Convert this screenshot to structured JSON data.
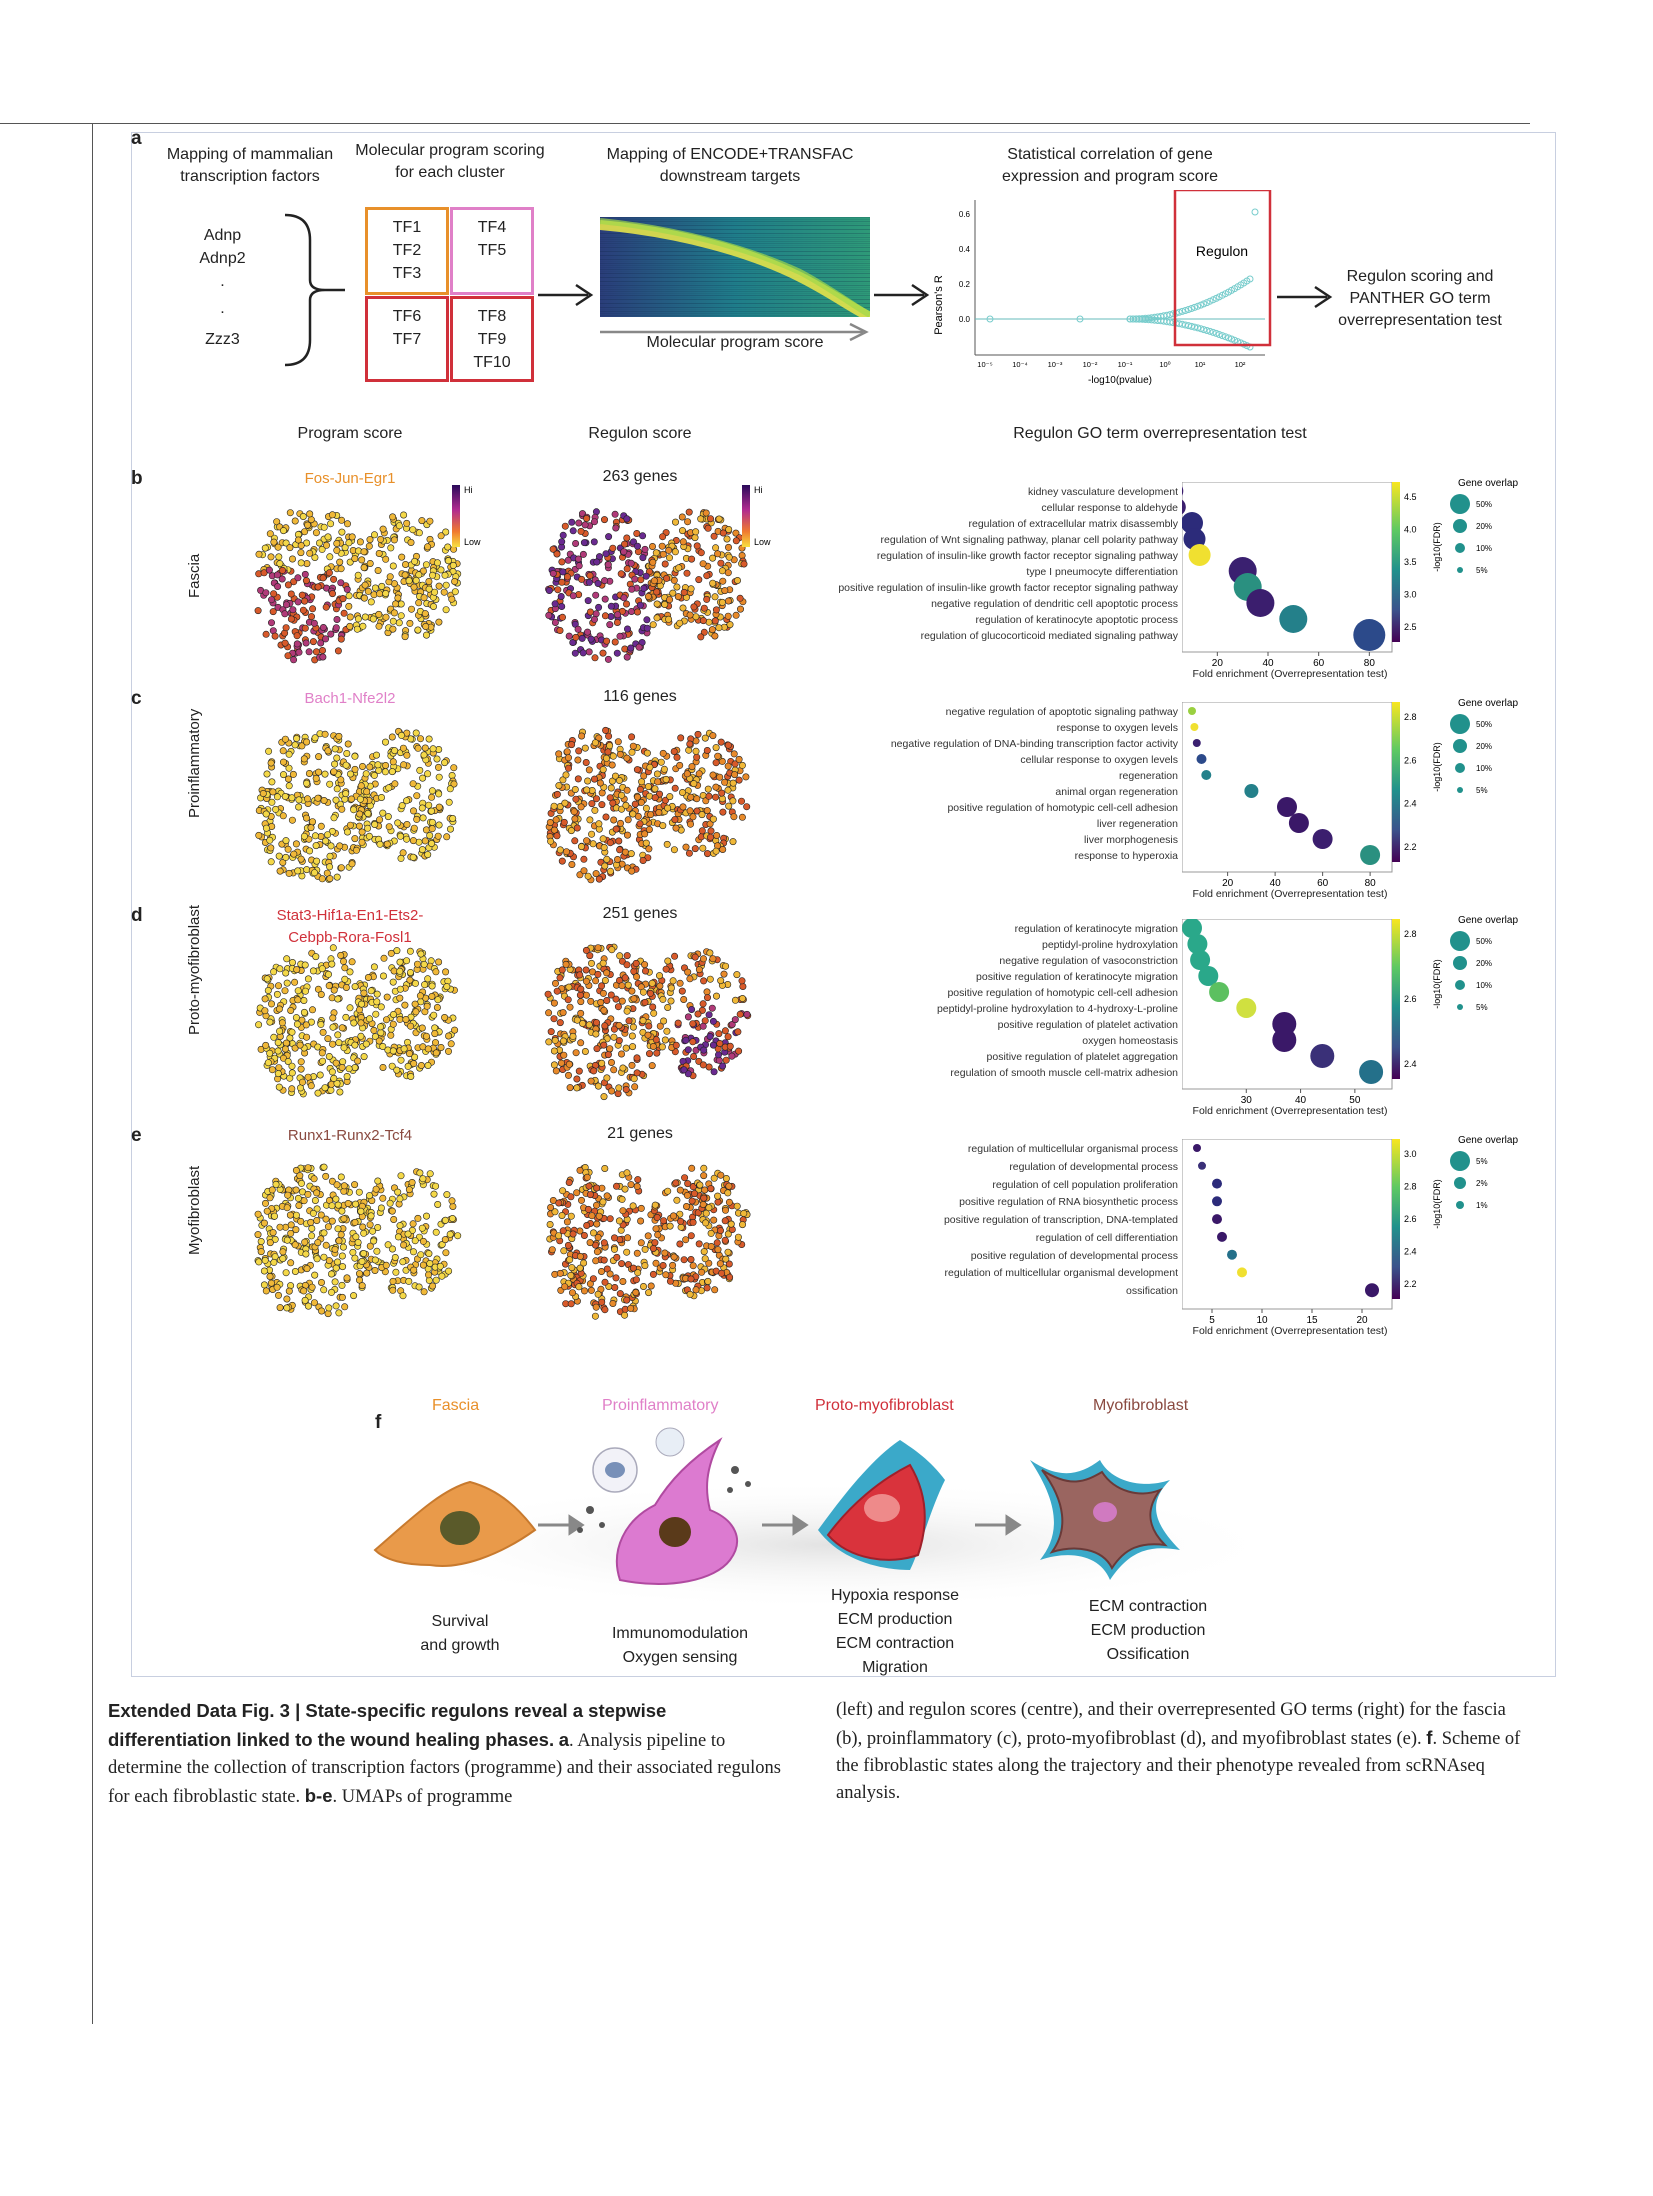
{
  "panel_a": {
    "letter": "a",
    "col1": "Mapping of mammalian transcription factors",
    "col2": "Molecular program scoring for each cluster",
    "col3": "Mapping of ENCODE+TRANSFAC downstream targets",
    "col4": "Statistical correlation of gene expression and program score",
    "col5": "Regulon scoring and PANTHER GO term overrepresentation test",
    "tf_list": [
      "Adnp",
      "Adnp2",
      ".",
      ".",
      "Zzz3"
    ],
    "boxes": [
      "TF1 TF2 TF3",
      "TF4 TF5",
      "TF6 TF7",
      "TF8 TF9 TF10"
    ],
    "box_colors": [
      "#e8902a",
      "#e080c8",
      "#d0303a",
      "#d0303a"
    ],
    "heatmap_caption": "Molecular program score",
    "scatter_ylabel": "Pearson's R",
    "scatter_xlabel": "-log10(pvalue)",
    "scatter_yticks": [
      "0.6",
      "0.4",
      "0.2",
      "0.0"
    ],
    "scatter_xticks": [
      "10⁻⁵",
      "10⁻⁴",
      "10⁻³",
      "10⁻²",
      "10⁻¹",
      "10⁰",
      "10¹",
      "10²"
    ],
    "regulon_label": "Regulon"
  },
  "col_headers": {
    "program": "Program score",
    "regulon": "Regulon score",
    "go": "Regulon GO term overrepresentation test"
  },
  "rows": [
    {
      "letter": "b",
      "state": "Fascia",
      "tfs": "Fos-Jun-Egr1",
      "tf_color": "#e8902a",
      "genes": "263 genes",
      "legend_hi": "Hi",
      "legend_low": "Low",
      "go_terms": [
        "kidney vasculature development",
        "cellular response to aldehyde",
        "regulation of extracellular matrix disassembly",
        "regulation of Wnt signaling pathway, planar cell polarity pathway",
        "regulation of insulin-like growth factor receptor signaling pathway",
        "type I pneumocyte differentiation",
        "positive regulation of insulin-like growth factor receptor signaling pathway",
        "negative regulation of dendritic cell apoptotic process",
        "regulation of keratinocyte apoptotic process",
        "regulation of glucocorticoid mediated signaling pathway"
      ],
      "xticks": [
        "20",
        "40",
        "60",
        "80"
      ],
      "xlabel": "Fold enrichment (Overrepresentation test)",
      "cbar_ticks": [
        "4.5",
        "4.0",
        "3.5",
        "3.0",
        "2.5"
      ],
      "cbar_label": "-log10(FDR)",
      "size_title": "Gene overlap",
      "size_labels": [
        "50%",
        "20%",
        "10%",
        "5%"
      ]
    },
    {
      "letter": "c",
      "state": "Proinflammatory",
      "tfs": "Bach1-Nfe2l2",
      "tf_color": "#e080c8",
      "genes": "116 genes",
      "go_terms": [
        "negative regulation of apoptotic signaling pathway",
        "response to oxygen levels",
        "negative regulation of DNA-binding transcription factor activity",
        "cellular response to oxygen levels",
        "regeneration",
        "animal organ regeneration",
        "positive regulation of homotypic cell-cell adhesion",
        "liver regeneration",
        "liver morphogenesis",
        "response to hyperoxia"
      ],
      "xticks": [
        "20",
        "40",
        "60",
        "80"
      ],
      "xlabel": "Fold enrichment (Overrepresentation test)",
      "cbar_ticks": [
        "2.8",
        "2.6",
        "2.4",
        "2.2"
      ],
      "cbar_label": "-log10(FDR)",
      "size_title": "Gene overlap",
      "size_labels": [
        "50%",
        "20%",
        "10%",
        "5%"
      ]
    },
    {
      "letter": "d",
      "state": "Proto-myofibroblast",
      "tfs": "Stat3-Hif1a-En1-Ets2-Cebpb-Rora-Fosl1",
      "tf_color": "#d0303a",
      "genes": "251 genes",
      "go_terms": [
        "regulation of keratinocyte migration",
        "peptidyl-proline hydroxylation",
        "negative regulation of vasoconstriction",
        "positive regulation of keratinocyte migration",
        "positive regulation of homotypic cell-cell adhesion",
        "peptidyl-proline hydroxylation to 4-hydroxy-L-proline",
        "positive regulation of platelet activation",
        "oxygen homeostasis",
        "positive regulation of platelet aggregation",
        "regulation of smooth muscle cell-matrix adhesion"
      ],
      "xticks": [
        "30",
        "40",
        "50"
      ],
      "xlabel": "Fold enrichment (Overrepresentation test)",
      "cbar_ticks": [
        "2.8",
        "2.6",
        "2.4"
      ],
      "cbar_label": "-log10(FDR)",
      "size_title": "Gene overlap",
      "size_labels": [
        "50%",
        "20%",
        "10%",
        "5%"
      ]
    },
    {
      "letter": "e",
      "state": "Myofibroblast",
      "tfs": "Runx1-Runx2-Tcf4",
      "tf_color": "#8a4a40",
      "genes": "21 genes",
      "go_terms": [
        "regulation of multicellular organismal process",
        "regulation of developmental process",
        "regulation of cell population proliferation",
        "positive regulation of RNA biosynthetic process",
        "positive regulation of transcription, DNA-templated",
        "regulation of cell differentiation",
        "positive regulation of developmental process",
        "regulation of multicellular organismal development",
        "ossification"
      ],
      "xticks": [
        "5",
        "10",
        "15",
        "20"
      ],
      "xlabel": "Fold enrichment (Overrepresentation test)",
      "cbar_ticks": [
        "3.0",
        "2.8",
        "2.6",
        "2.4",
        "2.2"
      ],
      "cbar_label": "-log10(FDR)",
      "size_title": "Gene overlap",
      "size_labels": [
        "5%",
        "2%",
        "1%"
      ]
    }
  ],
  "panel_f": {
    "letter": "f",
    "states": [
      {
        "name": "Fascia",
        "color": "#e8902a",
        "phenotype": [
          "Survival",
          "and growth"
        ]
      },
      {
        "name": "Proinflammatory",
        "color": "#e080c8",
        "phenotype": [
          "Immunomodulation",
          "Oxygen sensing"
        ]
      },
      {
        "name": "Proto-myofibroblast",
        "color": "#d0303a",
        "phenotype": [
          "Hypoxia response",
          "ECM production",
          "ECM contraction",
          "Migration"
        ]
      },
      {
        "name": "Myofibroblast",
        "color": "#8a4a40",
        "phenotype": [
          "ECM contraction",
          "ECM production",
          "Ossification"
        ]
      }
    ]
  },
  "caption": {
    "title": "Extended Data Fig. 3 | State-specific regulons reveal a stepwise differentiation linked to the wound healing phases.",
    "a_lead": "a",
    "a_text": ". Analysis pipeline to determine the collection of transcription factors (programme) and their associated regulons for each fibroblastic state.",
    "be_lead": "b-e",
    "be_text": ". UMAPs of programme (left) and regulon scores (centre), and their overrepresented GO terms (right) for the fascia (b), proinflammatory (c), proto-myofibroblast (d), and myofibroblast states (e).",
    "f_lead": "f",
    "f_text": ". Scheme of the fibroblastic states along the trajectory and their phenotype revealed from scRNAseq analysis."
  }
}
